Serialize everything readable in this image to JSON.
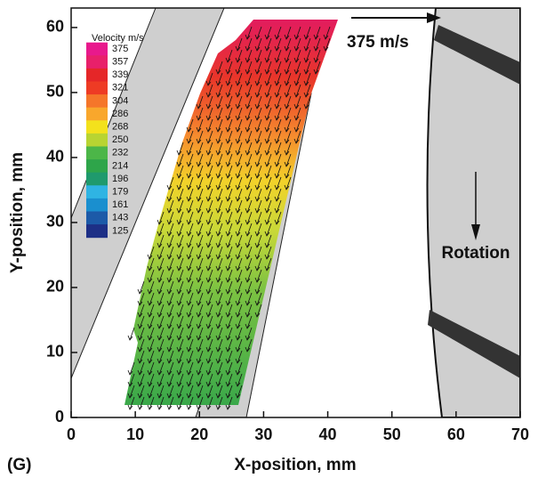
{
  "chart_data": {
    "type": "vector",
    "xlabel": "X-position, mm",
    "ylabel": "Y-position, mm",
    "xlim": [
      0,
      70
    ],
    "ylim": [
      0,
      63
    ],
    "xticks": [
      0,
      10,
      20,
      30,
      40,
      50,
      60,
      70
    ],
    "yticks": [
      0,
      10,
      20,
      30,
      40,
      50,
      60
    ],
    "colorbar": {
      "title": "Velocity m/s",
      "levels": [
        375,
        357,
        339,
        321,
        304,
        286,
        268,
        250,
        232,
        214,
        196,
        179,
        161,
        143,
        125
      ],
      "colors": [
        "#e8198c",
        "#e8206a",
        "#e52628",
        "#ee3b24",
        "#f5762a",
        "#f9a72c",
        "#f3e11c",
        "#b8d432",
        "#4cb648",
        "#2ea54a",
        "#1f9a6d",
        "#2fb4e3",
        "#1a8fcf",
        "#1c5aa8",
        "#1d2f86"
      ]
    },
    "reference_vector_label": "375 m/s",
    "rotation_label": "Rotation",
    "panel_label": "(G)"
  }
}
